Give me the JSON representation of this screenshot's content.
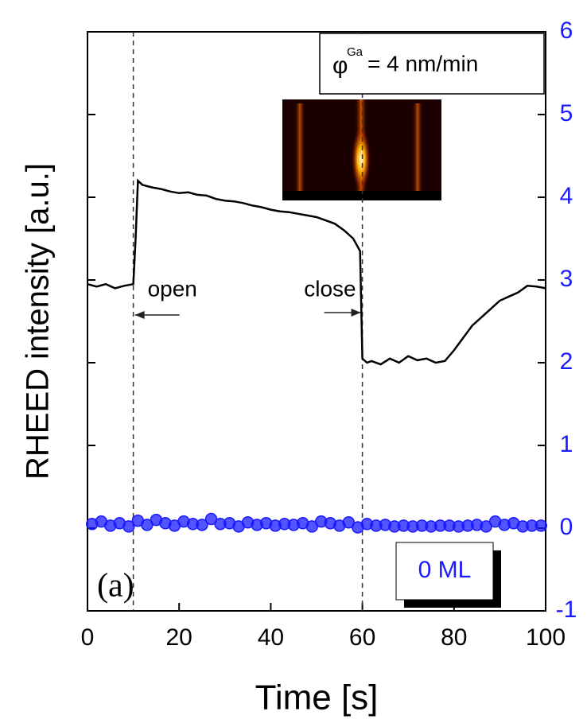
{
  "chart_data": {
    "type": "line",
    "x_label": "Time [s]",
    "y_label": "RHEED intensity [a.u.]",
    "xlim": [
      0,
      100
    ],
    "xticks": [
      0,
      20,
      40,
      60,
      80,
      100
    ],
    "y2lim": [
      -1,
      6
    ],
    "y2ticks": [
      -1,
      0,
      1,
      2,
      3,
      4,
      5,
      6
    ],
    "y2_color": "#1a1aff",
    "vlines": [
      10,
      60
    ],
    "annotations": {
      "flux_symbol": "φ",
      "flux_sup": "Ga",
      "flux_text": "= 4 nm/min",
      "open": "open",
      "close": "close",
      "panel": "(a)",
      "coverage": "0 ML"
    },
    "series": [
      {
        "type": "line",
        "axis": "y2",
        "color": "#000000",
        "x": [
          0,
          2,
          4,
          6,
          8,
          10,
          10.5,
          11,
          12,
          14,
          16,
          18,
          20,
          22,
          24,
          26,
          28,
          30,
          32,
          34,
          36,
          38,
          40,
          42,
          44,
          46,
          48,
          50,
          52,
          54,
          56,
          58,
          59,
          59.5,
          60,
          61,
          62,
          64,
          66,
          68,
          70,
          72,
          74,
          76,
          78,
          80,
          82,
          84,
          86,
          88,
          90,
          92,
          94,
          96,
          98,
          100
        ],
        "values": [
          2.95,
          2.92,
          2.95,
          2.9,
          2.93,
          2.95,
          3.5,
          4.2,
          4.15,
          4.12,
          4.1,
          4.07,
          4.05,
          4.06,
          4.03,
          4.02,
          3.98,
          3.96,
          3.95,
          3.93,
          3.9,
          3.88,
          3.85,
          3.83,
          3.82,
          3.8,
          3.78,
          3.76,
          3.72,
          3.68,
          3.6,
          3.5,
          3.4,
          3.35,
          2.05,
          2.0,
          2.02,
          1.98,
          2.05,
          2.0,
          2.08,
          2.03,
          2.05,
          2.0,
          2.02,
          2.15,
          2.3,
          2.45,
          2.55,
          2.65,
          2.75,
          2.8,
          2.85,
          2.93,
          2.92,
          2.9
        ]
      },
      {
        "type": "scatter",
        "axis": "y2",
        "color": "#1a1aff",
        "x": [
          1,
          3,
          5,
          7,
          9,
          11,
          13,
          15,
          17,
          19,
          21,
          23,
          25,
          27,
          29,
          31,
          33,
          35,
          37,
          39,
          41,
          43,
          45,
          47,
          49,
          51,
          53,
          55,
          57,
          59,
          61,
          63,
          65,
          67,
          69,
          71,
          73,
          75,
          77,
          79,
          81,
          83,
          85,
          87,
          89,
          91,
          93,
          95,
          97,
          99
        ],
        "values": [
          0.05,
          0.08,
          0.03,
          0.06,
          0.02,
          0.09,
          0.04,
          0.1,
          0.06,
          0.03,
          0.08,
          0.05,
          0.04,
          0.11,
          0.05,
          0.06,
          0.02,
          0.07,
          0.04,
          0.06,
          0.03,
          0.05,
          0.04,
          0.06,
          0.02,
          0.08,
          0.06,
          0.03,
          0.07,
          0.01,
          0.05,
          0.03,
          0.04,
          0.02,
          0.03,
          0.02,
          0.03,
          0.02,
          0.03,
          0.03,
          0.02,
          0.03,
          0.04,
          0.02,
          0.08,
          0.04,
          0.06,
          0.02,
          0.03,
          0.03
        ]
      }
    ]
  }
}
